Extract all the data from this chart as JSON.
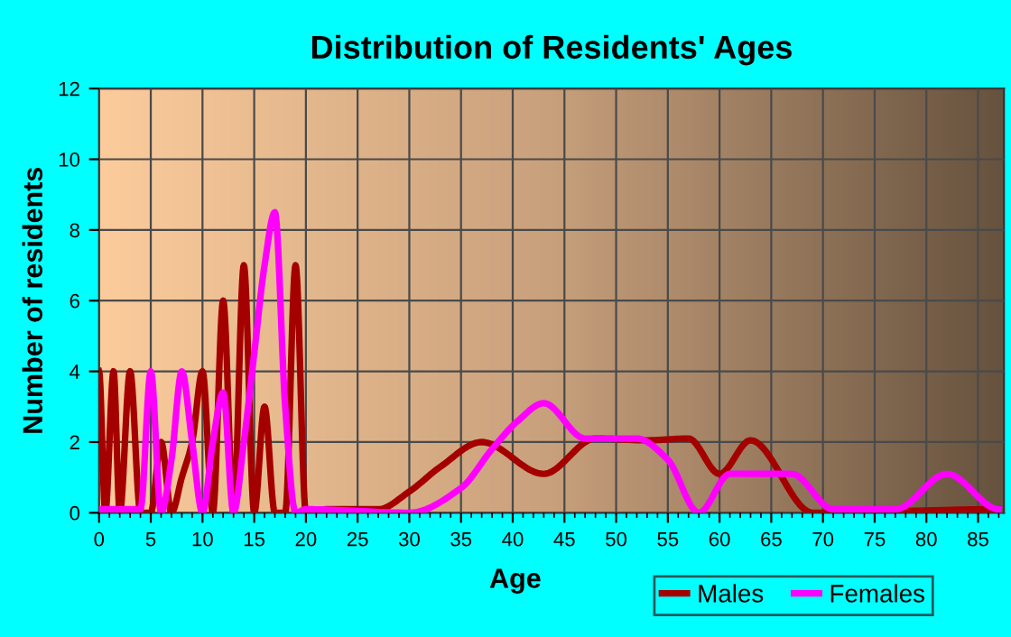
{
  "chart_data": {
    "type": "line",
    "title": "Distribution of Residents' Ages",
    "xlabel": "Age",
    "ylabel": "Number of residents",
    "xlim": [
      0,
      87.5
    ],
    "ylim": [
      0,
      12
    ],
    "xticks": [
      0,
      5,
      10,
      15,
      20,
      25,
      30,
      35,
      40,
      45,
      50,
      55,
      60,
      65,
      70,
      75,
      80,
      85
    ],
    "yticks": [
      0,
      2,
      4,
      6,
      8,
      10,
      12
    ],
    "grid": true,
    "legend": "bottom right",
    "marker": "none",
    "line_style": "solid",
    "series": [
      {
        "name": "Males",
        "color": "#a50000",
        "x": [
          0,
          0.6,
          1.4,
          2,
          3,
          4,
          5,
          6,
          7,
          8,
          9,
          10,
          11,
          12,
          13,
          14,
          15,
          16,
          17,
          18,
          19,
          20,
          22,
          27,
          30,
          33,
          37,
          43,
          48,
          53,
          57,
          60,
          63,
          69,
          87
        ],
        "values": [
          4,
          0,
          4,
          0,
          4,
          0,
          0,
          2,
          0,
          1,
          2,
          4,
          0,
          6,
          0,
          7,
          0,
          3,
          0,
          0,
          7,
          0,
          0.1,
          0.1,
          0.6,
          1.3,
          2,
          1.1,
          2.1,
          2.05,
          2.1,
          1.1,
          2.05,
          0,
          0.1
        ]
      },
      {
        "name": "Females",
        "color": "#ff00ff",
        "x": [
          0,
          2,
          4,
          5,
          6,
          7,
          8,
          9,
          10,
          11,
          12,
          13,
          14,
          15,
          16,
          17,
          18,
          19,
          20,
          30,
          35,
          38,
          40.5,
          43,
          47,
          52,
          55,
          58,
          61,
          64,
          67,
          71,
          77,
          82,
          87
        ],
        "values": [
          0.1,
          0.1,
          0.1,
          4,
          0,
          1.5,
          4,
          2,
          0,
          2,
          3.4,
          0,
          2,
          4.5,
          7,
          8.5,
          3,
          0,
          0.1,
          0,
          0.7,
          1.8,
          2.6,
          3.1,
          2.1,
          2.1,
          1.5,
          0,
          1.1,
          1.1,
          1.1,
          0.1,
          0.1,
          1.1,
          0.1
        ]
      }
    ]
  }
}
